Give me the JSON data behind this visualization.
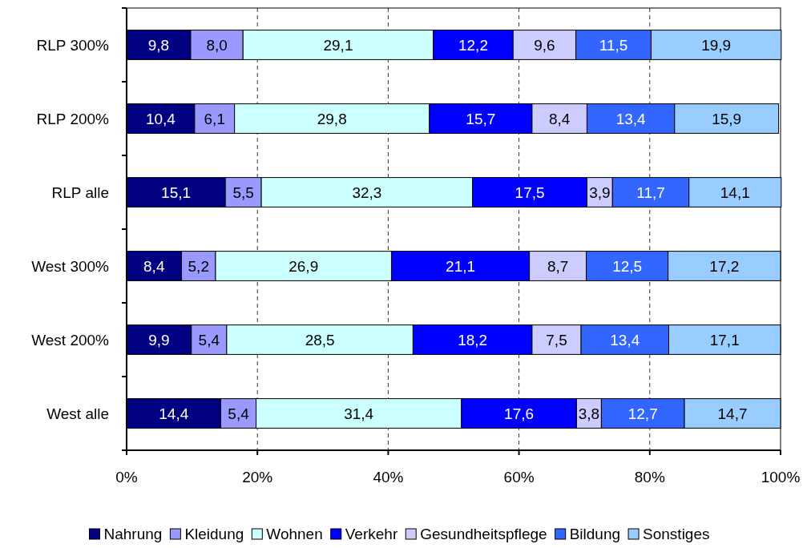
{
  "chart_data": {
    "type": "bar",
    "orientation": "horizontal",
    "stacked": true,
    "categories": [
      "RLP 300%",
      "RLP 200%",
      "RLP alle",
      "West 300%",
      "West 200%",
      "West alle"
    ],
    "series": [
      {
        "name": "Nahrung",
        "color": "#000080",
        "values": [
          9.8,
          10.4,
          15.1,
          8.4,
          9.9,
          14.4
        ],
        "value_labels": [
          "9,8",
          "10,4",
          "15,1",
          "8,4",
          "9,9",
          "14,4"
        ]
      },
      {
        "name": "Kleidung",
        "color": "#9999ff",
        "values": [
          8.0,
          6.1,
          5.5,
          5.2,
          5.4,
          5.4
        ],
        "value_labels": [
          "8,0",
          "6,1",
          "5,5",
          "5,2",
          "5,4",
          "5,4"
        ]
      },
      {
        "name": "Wohnen",
        "color": "#ccffff",
        "values": [
          29.1,
          29.8,
          32.3,
          26.9,
          28.5,
          31.4
        ],
        "value_labels": [
          "29,1",
          "29,8",
          "32,3",
          "26,9",
          "28,5",
          "31,4"
        ]
      },
      {
        "name": "Verkehr",
        "color": "#0000ff",
        "values": [
          12.2,
          15.7,
          17.5,
          21.1,
          18.2,
          17.6
        ],
        "value_labels": [
          "12,2",
          "15,7",
          "17,5",
          "21,1",
          "18,2",
          "17,6"
        ]
      },
      {
        "name": "Gesundheitspflege",
        "color": "#ccccff",
        "values": [
          9.6,
          8.4,
          3.9,
          8.7,
          7.5,
          3.8
        ],
        "value_labels": [
          "9,6",
          "8,4",
          "3,9",
          "8,7",
          "7,5",
          "3,8"
        ]
      },
      {
        "name": "Bildung",
        "color": "#3366ff",
        "values": [
          11.5,
          13.4,
          11.7,
          12.5,
          13.4,
          12.7
        ],
        "value_labels": [
          "11,5",
          "13,4",
          "11,7",
          "12,5",
          "13,4",
          "12,7"
        ]
      },
      {
        "name": "Sonstiges",
        "color": "#99ccff",
        "values": [
          19.9,
          15.9,
          14.1,
          17.2,
          17.1,
          14.7
        ],
        "value_labels": [
          "19,9",
          "15,9",
          "14,1",
          "17,2",
          "17,1",
          "14,7"
        ]
      }
    ],
    "xlim": [
      0,
      100
    ],
    "xticks": [
      {
        "value": 0,
        "label": "0%"
      },
      {
        "value": 20,
        "label": "20%"
      },
      {
        "value": 40,
        "label": "40%"
      },
      {
        "value": 60,
        "label": "60%"
      },
      {
        "value": 80,
        "label": "80%"
      },
      {
        "value": 100,
        "label": "100%"
      }
    ],
    "grid": "x",
    "legend": "bottom"
  }
}
